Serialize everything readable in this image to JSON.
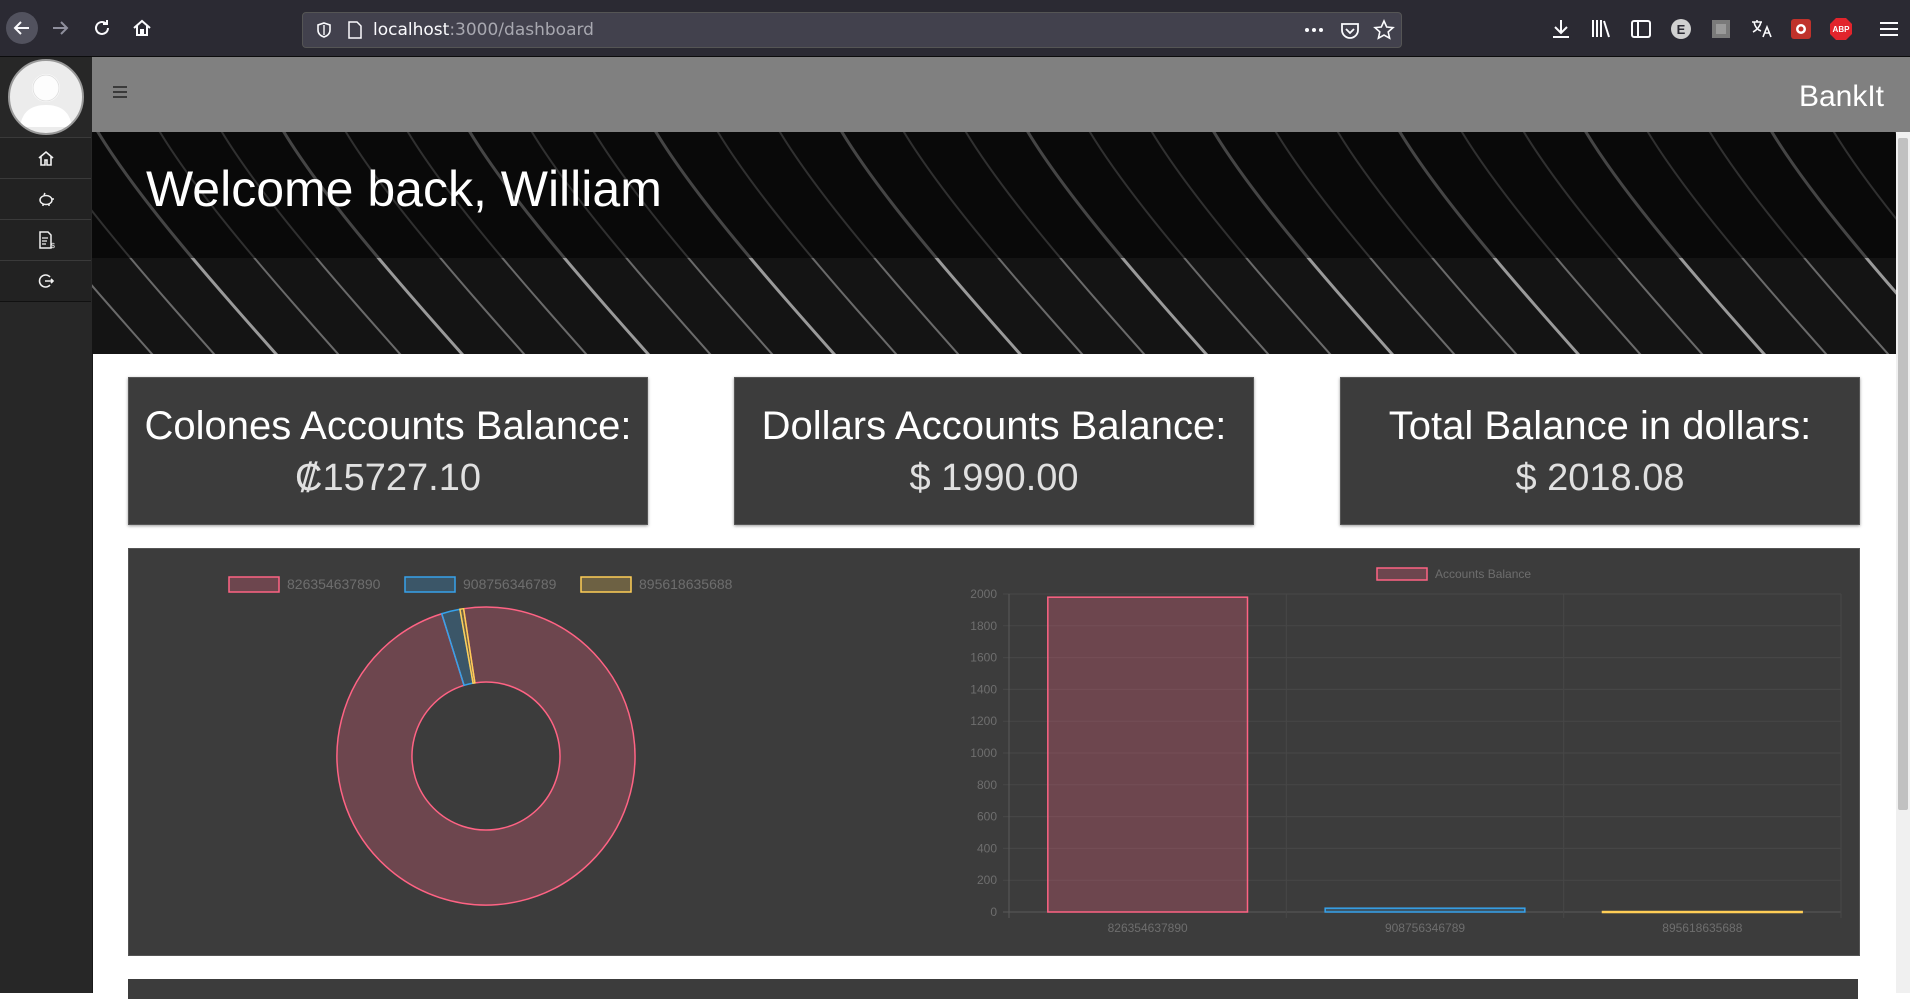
{
  "browser": {
    "url_host": "localhost",
    "url_path": ":3000/dashboard"
  },
  "app": {
    "brand": "BankIt",
    "welcome": "Welcome back, William"
  },
  "sidebar": {
    "items": [
      {
        "icon": "home-icon"
      },
      {
        "icon": "piggy-bank-icon"
      },
      {
        "icon": "transactions-icon"
      },
      {
        "icon": "logout-icon"
      }
    ]
  },
  "cards": [
    {
      "title": "Colones Accounts Balance:",
      "value": "₡15727.10"
    },
    {
      "title": "Dollars Accounts Balance:",
      "value": "$ 1990.00"
    },
    {
      "title": "Total Balance in dollars:",
      "value": "$ 2018.08"
    }
  ],
  "chart_data": [
    {
      "type": "pie",
      "categories": [
        "826354637890",
        "908756346789",
        "895618635688"
      ],
      "values": [
        97.6,
        2.0,
        0.4
      ],
      "colors": [
        "#ff6384",
        "#36a2eb",
        "#ffce56"
      ],
      "legend": "top"
    },
    {
      "type": "bar",
      "categories": [
        "826354637890",
        "908756346789",
        "895618635688"
      ],
      "series": [
        {
          "name": "Accounts Balance",
          "values": [
            1980,
            24,
            3
          ]
        }
      ],
      "ylim": [
        0,
        2000
      ],
      "yticks": [
        0,
        200,
        400,
        600,
        800,
        1000,
        1200,
        1400,
        1600,
        1800,
        2000
      ],
      "colors": [
        "#ff6384",
        "#36a2eb",
        "#ffce56"
      ],
      "grid": true,
      "legend": "top"
    }
  ]
}
